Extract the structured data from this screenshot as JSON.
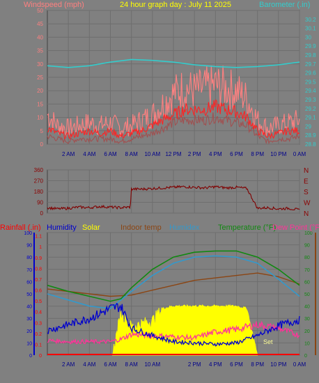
{
  "title": "24 hour graph day : July 11 2025",
  "colors": {
    "background": "#808080",
    "grid": "#6e6e6e",
    "plot_border": "#404040",
    "wind_label": "#ff7f7f",
    "baro": "#33cccc",
    "gust": "#ff8080",
    "avg_wind": "#ff2222",
    "min_wind": "#a05050",
    "winddir": "#800000",
    "rain": "#ff0000",
    "humidity": "#0000cc",
    "solar": "#ffff00",
    "indoor": "#8b4513",
    "humidex": "#3399cc",
    "temperature": "#118811",
    "dewpoint": "#ff3399",
    "x_tick_label": "#00008b",
    "dir_label": "#8b0000"
  },
  "chart_data": [
    {
      "type": "line",
      "panel": "wind_barometer",
      "left_axis_label": "Windspeed (mph)",
      "right_axis_label": "Barometer (.in)",
      "ylim_left": [
        0,
        50
      ],
      "ylim_right": [
        28.8,
        30.3
      ],
      "left_ticks": [
        "0",
        "5",
        "10",
        "15",
        "20",
        "25",
        "30",
        "35",
        "40",
        "45",
        "50"
      ],
      "right_ticks": [
        "28.8",
        "28.9",
        "29",
        "29.1",
        "29.2",
        "29.3",
        "29.4",
        "29.5",
        "29.6",
        "29.7",
        "29.8",
        "29.9",
        "30",
        "30.1",
        "30.2"
      ],
      "x_ticks": [
        "2 AM",
        "4 AM",
        "6 AM",
        "8 AM",
        "10 AM",
        "12 PM",
        "2 PM",
        "4 PM",
        "6 PM",
        "8 PM",
        "10 PM",
        "0 AM"
      ],
      "x_tick_hours": [
        2,
        4,
        6,
        8,
        10,
        12,
        14,
        16,
        18,
        20,
        22,
        24
      ],
      "grid": true,
      "series": [
        {
          "key": "gust",
          "x": [
            0,
            1,
            2,
            3,
            4,
            5,
            6,
            7,
            8,
            9,
            10,
            11,
            12,
            13,
            14,
            15,
            16,
            17,
            18,
            19,
            20,
            21,
            22,
            23,
            24
          ],
          "values": [
            11,
            7,
            6,
            7,
            8,
            7,
            8,
            6,
            7,
            9,
            11,
            15,
            19,
            21,
            20,
            21,
            22,
            21,
            20,
            17,
            9,
            6,
            7,
            8,
            9
          ]
        },
        {
          "key": "avg_wind",
          "x": [
            0,
            1,
            2,
            3,
            4,
            5,
            6,
            7,
            8,
            9,
            10,
            11,
            12,
            13,
            14,
            15,
            16,
            17,
            18,
            19,
            20,
            21,
            22,
            23,
            24
          ],
          "values": [
            6,
            4,
            3,
            4,
            5,
            4,
            5,
            3,
            4,
            5,
            7,
            9,
            11,
            13,
            13,
            13,
            14,
            13,
            12,
            10,
            5,
            3,
            4,
            5,
            5
          ]
        },
        {
          "key": "min_wind",
          "x": [
            0,
            1,
            2,
            3,
            4,
            5,
            6,
            7,
            8,
            9,
            10,
            11,
            12,
            13,
            14,
            15,
            16,
            17,
            18,
            19,
            20,
            21,
            22,
            23,
            24
          ],
          "values": [
            3,
            2,
            1,
            2,
            2,
            2,
            2,
            1,
            2,
            3,
            4,
            6,
            8,
            9,
            9,
            9,
            10,
            9,
            8,
            7,
            3,
            1,
            2,
            2,
            3
          ]
        },
        {
          "key": "baro",
          "axis": "right",
          "x": [
            0,
            2,
            4,
            6,
            8,
            10,
            12,
            14,
            16,
            18,
            20,
            22,
            24
          ],
          "values": [
            29.68,
            29.66,
            29.68,
            29.72,
            29.75,
            29.74,
            29.72,
            29.69,
            29.67,
            29.66,
            29.67,
            29.69,
            29.72
          ]
        }
      ]
    },
    {
      "type": "line",
      "panel": "wind_direction",
      "left_ticks": [
        "0",
        "90",
        "180",
        "270",
        "360"
      ],
      "right_labels": [
        "N",
        "W",
        "S",
        "E",
        "N"
      ],
      "ylim": [
        0,
        360
      ],
      "series": [
        {
          "key": "winddir",
          "x": [
            0,
            1,
            2,
            3,
            4,
            5,
            6,
            7,
            7.9,
            8,
            9,
            10,
            11,
            12,
            13,
            14,
            15,
            16,
            17,
            18,
            19,
            20,
            21,
            22,
            23,
            24
          ],
          "values": [
            45,
            35,
            40,
            50,
            45,
            55,
            50,
            45,
            50,
            200,
            200,
            205,
            210,
            215,
            220,
            215,
            210,
            220,
            210,
            215,
            205,
            40,
            45,
            35,
            40,
            25
          ]
        }
      ]
    },
    {
      "type": "line",
      "panel": "temp_humidity",
      "legend": [
        "Rainfall (.in)",
        "Humidity",
        "Solar",
        "Indoor temp",
        "Humidex",
        "Temperature (°F)",
        "Dew Point (°F)"
      ],
      "left_ticks_humidity": [
        "0",
        "10",
        "20",
        "30",
        "40",
        "50",
        "60",
        "70",
        "80",
        "90",
        "100"
      ],
      "left_ticks_rain": [
        "0",
        "0.1",
        "0.2",
        "0.3",
        "0.4",
        "0.5",
        "0.6",
        "0.7",
        "0.8",
        "0.9",
        "1",
        "1.1"
      ],
      "right_ticks_temp": [
        "0",
        "10",
        "20",
        "30",
        "40",
        "50",
        "60",
        "70",
        "80",
        "90",
        "100"
      ],
      "ylim": [
        0,
        100
      ],
      "x_ticks": [
        "2 AM",
        "4 AM",
        "6 AM",
        "8 AM",
        "10 AM",
        "2 PM",
        "4 PM",
        "6 PM",
        "8 PM",
        "10 PM",
        "0 AM"
      ],
      "x_tick_hours": [
        2,
        4,
        6,
        8,
        10,
        14,
        16,
        18,
        20,
        22,
        24
      ],
      "annotations": {
        "set": "Set"
      },
      "series": [
        {
          "key": "temperature",
          "x": [
            0,
            2,
            4,
            6,
            7,
            8,
            10,
            12,
            14,
            16,
            18,
            20,
            22,
            24
          ],
          "values": [
            57,
            52,
            48,
            44,
            46,
            55,
            70,
            80,
            84,
            85,
            85,
            80,
            70,
            57
          ]
        },
        {
          "key": "humidex",
          "x": [
            0,
            2,
            4,
            6,
            7,
            8,
            10,
            12,
            14,
            16,
            18,
            20,
            22,
            24
          ],
          "values": [
            50,
            45,
            40,
            38,
            45,
            52,
            65,
            75,
            80,
            81,
            80,
            75,
            62,
            48
          ]
        },
        {
          "key": "indoor",
          "x": [
            0,
            2,
            4,
            6,
            8,
            10,
            12,
            14,
            16,
            18,
            20,
            22,
            24
          ],
          "values": [
            54,
            52,
            50,
            48,
            49,
            53,
            57,
            61,
            63,
            65,
            67,
            64,
            58
          ]
        },
        {
          "key": "dewpoint",
          "x": [
            0,
            2,
            4,
            6,
            7,
            8,
            10,
            12,
            14,
            16,
            18,
            20,
            22,
            24
          ],
          "values": [
            12,
            11,
            11,
            11,
            13,
            17,
            16,
            15,
            14,
            19,
            21,
            25,
            22,
            16
          ]
        },
        {
          "key": "humidity",
          "x": [
            0,
            2,
            4,
            6,
            7,
            8,
            10,
            12,
            14,
            16,
            18,
            20,
            22,
            24
          ],
          "values": [
            20,
            25,
            30,
            38,
            40,
            22,
            16,
            11,
            10,
            9,
            10,
            16,
            24,
            29
          ]
        },
        {
          "key": "solar",
          "x": [
            6.2,
            7,
            8,
            10,
            11,
            12,
            14,
            16,
            18,
            19,
            20
          ],
          "values": [
            0,
            34,
            23,
            28,
            38,
            40,
            40,
            40,
            40,
            38,
            0
          ]
        }
      ]
    }
  ]
}
